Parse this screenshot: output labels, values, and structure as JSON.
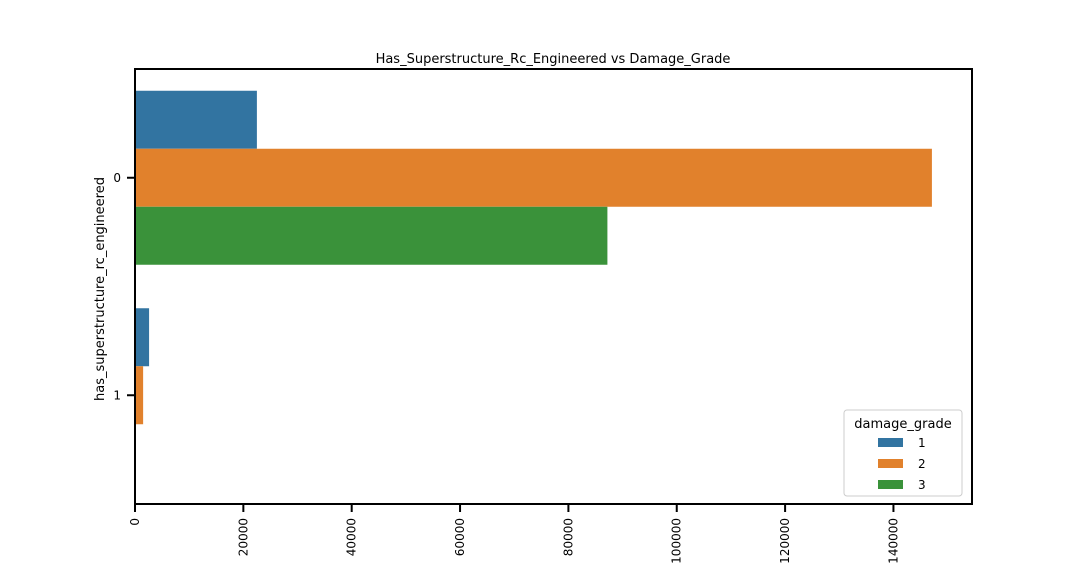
{
  "chart_data": {
    "type": "bar",
    "orientation": "horizontal",
    "title": "Has_Superstructure_Rc_Engineered vs Damage_Grade",
    "xlabel": "",
    "ylabel": "has_superstructure_rc_engineered",
    "categories": [
      "0",
      "1"
    ],
    "series": [
      {
        "name": "1",
        "color": "#3274a1",
        "values": [
          22500,
          2600
        ]
      },
      {
        "name": "2",
        "color": "#e1812c",
        "values": [
          147100,
          1500
        ]
      },
      {
        "name": "3",
        "color": "#3a923a",
        "values": [
          87200,
          0
        ]
      }
    ],
    "xlim": [
      0,
      154500
    ],
    "xticks": [
      0,
      20000,
      40000,
      60000,
      80000,
      100000,
      120000,
      140000
    ],
    "xtick_labels": [
      "0",
      "20000",
      "40000",
      "60000",
      "80000",
      "100000",
      "120000",
      "140000"
    ],
    "xtick_rotation": 90,
    "grid": false,
    "legend": {
      "title": "damage_grade",
      "placement": "lower-right"
    }
  }
}
